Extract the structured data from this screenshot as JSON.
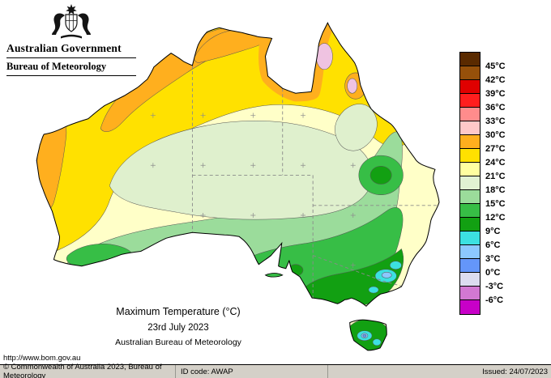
{
  "header": {
    "government": "Australian Government",
    "bureau": "Bureau of Meteorology"
  },
  "title_block": {
    "title": "Maximum Temperature (°C)",
    "date": "23rd July 2023",
    "org": "Australian Bureau of Meteorology"
  },
  "url": {
    "text": "http://www.bom.gov.au"
  },
  "footer": {
    "copyright": "© Commonwealth of Australia 2023, Bureau of Meteorology",
    "id_code": "ID code: AWAP",
    "issued": "Issued: 24/07/2023"
  },
  "legend": {
    "labels": [
      "45°C",
      "42°C",
      "39°C",
      "36°C",
      "33°C",
      "30°C",
      "27°C",
      "24°C",
      "21°C",
      "18°C",
      "15°C",
      "12°C",
      "9°C",
      "6°C",
      "3°C",
      "0°C",
      "-3°C",
      "-6°C"
    ],
    "cell_colors": [
      "#5A2A00",
      "#96500A",
      "#E00000",
      "#FF1E1E",
      "#FF8C8C",
      "#FFC8C8",
      "#FFAF1E",
      "#FFE100",
      "#FFFFA0",
      "#E1F2D2",
      "#9BDC9B",
      "#37BE46",
      "#12A012",
      "#3CE1E1",
      "#8CC8FF",
      "#6496FA",
      "#DCDCF0",
      "#D278D2",
      "#C800C8"
    ]
  },
  "map_colors": {
    "b21": "#FFFFC8",
    "b24": "#FFE100",
    "b27": "#FFAF1E",
    "pink_spot": "#EFC3E1",
    "b18": "#DFF0CD",
    "b15": "#9BDC9B",
    "b12": "#37BE46",
    "b9": "#12A012",
    "b6": "#3CE1E1",
    "b3": "#8CC8FF",
    "b0": "#6496FA",
    "border": "#8A8A8A"
  }
}
